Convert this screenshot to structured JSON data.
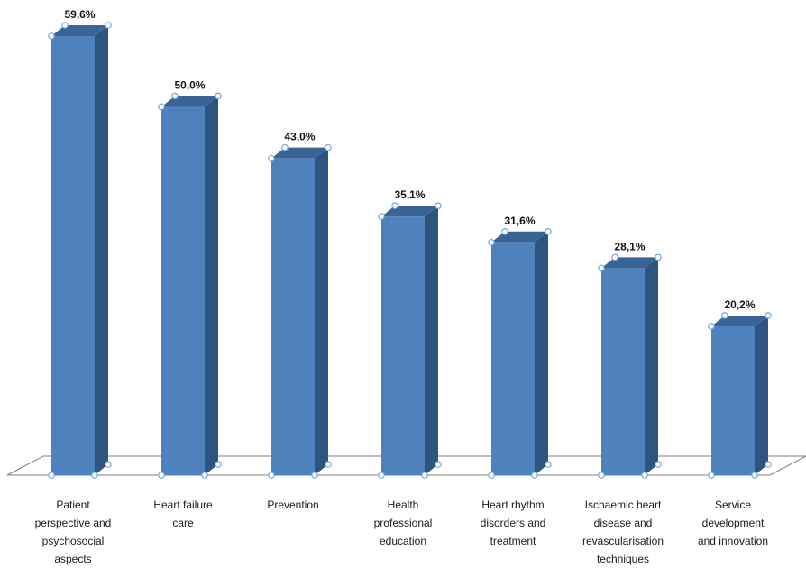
{
  "chart_data": {
    "type": "bar",
    "categories": [
      "Patient\nperspective and\npsychosocial\naspects",
      "Heart failure\ncare",
      "Prevention",
      "Health\nprofessional\neducation",
      "Heart rhythm\ndisorders and\ntreatment",
      "Ischaemic heart\ndisease and\nrevascularisation\ntechniques",
      "Service\ndevelopment\nand innovation"
    ],
    "values": [
      59.6,
      50.0,
      43.0,
      35.1,
      31.6,
      28.1,
      20.2
    ],
    "value_labels": [
      "59,6%",
      "50,0%",
      "43,0%",
      "35,1%",
      "31,6%",
      "28,1%",
      "20,2%"
    ],
    "ylim": [
      0,
      59.6
    ],
    "grid": false,
    "legend": "none",
    "colors": {
      "front": "#4f81bd",
      "side": "#2e5480",
      "top": "#3a6496",
      "handle": "#6fa8dc"
    }
  }
}
